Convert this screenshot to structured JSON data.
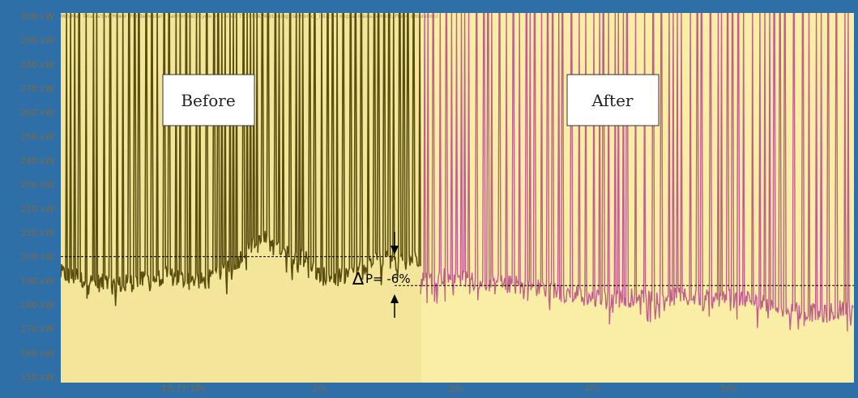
{
  "chart_data": {
    "type": "line",
    "title": "Min/Max Total Active Power (Fundamental+ harmonics) (Cycle by Cycle), TR1000KVA@Loging Electronics_(Black= orignal measurement, Pink= simulation)",
    "y_ticks": [
      "300 kW",
      "290 kW",
      "280 kW",
      "270 kW",
      "260 kW",
      "250 kW",
      "240 kW",
      "230 kW",
      "220 kW",
      "210 kW",
      "200 kW",
      "190 kW",
      "180 kW",
      "170 kW",
      "160 kW",
      "150 kW"
    ],
    "ylim": [
      150,
      300
    ],
    "x_ticks": [
      "13:37:10s",
      "20s",
      "30s",
      "40s",
      "50s"
    ],
    "x_tick_seconds": [
      10,
      20,
      30,
      40,
      50
    ],
    "xlim": [
      1.0,
      59.2
    ],
    "series": [
      {
        "name": "Black= orignal measurement",
        "color": "#5a4d0d",
        "x_range": [
          1.0,
          27.4
        ],
        "baseline": [
          [
            1,
            193
          ],
          [
            3,
            190
          ],
          [
            5,
            188
          ],
          [
            7,
            190
          ],
          [
            9,
            192
          ],
          [
            11,
            189
          ],
          [
            12,
            191
          ],
          [
            13.5,
            196
          ],
          [
            15,
            204
          ],
          [
            16,
            207
          ],
          [
            17,
            202
          ],
          [
            18,
            200
          ],
          [
            19,
            199
          ],
          [
            20,
            192
          ],
          [
            21,
            191
          ],
          [
            22,
            193
          ],
          [
            23,
            195
          ],
          [
            24,
            198
          ],
          [
            25,
            199
          ],
          [
            26,
            198
          ],
          [
            27.4,
            200
          ]
        ],
        "spike_to": 300
      },
      {
        "name": "Pink= simulation",
        "color": "#c0608a",
        "x_range": [
          27.4,
          59.2
        ],
        "baseline": [
          [
            27.4,
            190
          ],
          [
            29,
            192
          ],
          [
            31,
            190
          ],
          [
            33,
            189
          ],
          [
            35,
            188
          ],
          [
            37,
            186
          ],
          [
            39,
            184
          ],
          [
            41,
            182
          ],
          [
            43,
            183
          ],
          [
            45,
            184
          ],
          [
            47,
            183
          ],
          [
            49,
            182
          ],
          [
            51,
            183
          ],
          [
            53,
            180
          ],
          [
            55,
            178
          ],
          [
            57,
            176
          ],
          [
            59.2,
            180
          ]
        ],
        "spike_to": 300
      }
    ],
    "annotations": {
      "before_label": "Before",
      "after_label": "After",
      "delta_symbol": "∆",
      "delta_text": "P= -6%",
      "before_avg_kw": 200,
      "after_avg_kw": 188
    },
    "grid": false,
    "background_before": "#f3e69a",
    "background_after": "#faeea6"
  }
}
